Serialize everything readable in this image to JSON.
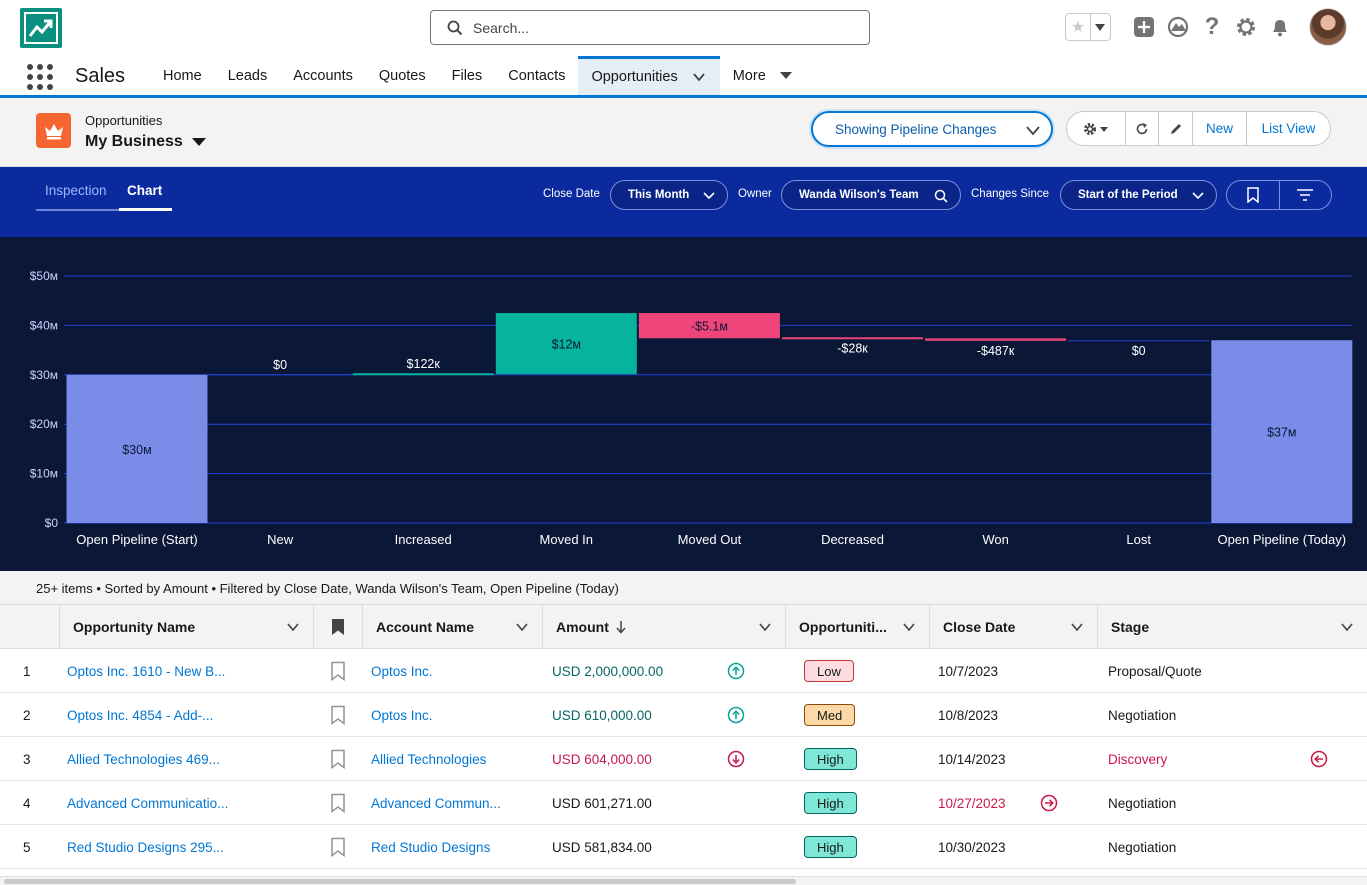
{
  "header": {
    "search_placeholder": "Search...",
    "icons": [
      "favorites-star-icon",
      "add-icon",
      "trailhead-icon",
      "help-icon",
      "setup-gear-icon",
      "notifications-bell-icon"
    ]
  },
  "app": {
    "name": "Sales",
    "tabs": [
      {
        "label": "Home"
      },
      {
        "label": "Leads"
      },
      {
        "label": "Accounts"
      },
      {
        "label": "Quotes"
      },
      {
        "label": "Files"
      },
      {
        "label": "Contacts"
      },
      {
        "label": "Opportunities",
        "active": true
      },
      {
        "label": "More"
      }
    ]
  },
  "page": {
    "object_type": "Opportunities",
    "title": "My Business",
    "pipeline_button": "Showing Pipeline Changes",
    "new_button": "New",
    "list_view_button": "List View"
  },
  "filters": {
    "tab_inspection": "Inspection",
    "tab_chart": "Chart",
    "close_date_label": "Close Date",
    "close_date_value": "This Month",
    "owner_label": "Owner",
    "owner_value": "Wanda Wilson's Team",
    "changes_since_label": "Changes Since",
    "changes_since_value": "Start of the Period"
  },
  "chart_data": {
    "type": "bar",
    "subtype": "waterfall",
    "y_ticks": [
      "$0",
      "$10м",
      "$20м",
      "$30м",
      "$40м",
      "$50м"
    ],
    "ylim": [
      0,
      50
    ],
    "categories": [
      "Open Pipeline (Start)",
      "New",
      "Increased",
      "Moved In",
      "Moved Out",
      "Decreased",
      "Won",
      "Lost",
      "Open Pipeline (Today)"
    ],
    "bars": [
      {
        "category": "Open Pipeline (Start)",
        "kind": "total",
        "start": 0,
        "end": 30,
        "label": "$30м"
      },
      {
        "category": "New",
        "kind": "increase",
        "start": 30,
        "end": 30,
        "label": "$0"
      },
      {
        "category": "Increased",
        "kind": "increase",
        "start": 30,
        "end": 30.122,
        "label": "$122к"
      },
      {
        "category": "Moved In",
        "kind": "increase",
        "start": 30.122,
        "end": 42.5,
        "label": "$12м"
      },
      {
        "category": "Moved Out",
        "kind": "decrease",
        "start": 42.5,
        "end": 37.4,
        "label": "-$5.1м"
      },
      {
        "category": "Decreased",
        "kind": "decrease",
        "start": 37.4,
        "end": 37.372,
        "label": "-$28к"
      },
      {
        "category": "Won",
        "kind": "decrease",
        "start": 37.372,
        "end": 36.885,
        "label": "-$487к"
      },
      {
        "category": "Lost",
        "kind": "decrease",
        "start": 36.885,
        "end": 36.885,
        "label": "$0"
      },
      {
        "category": "Open Pipeline (Today)",
        "kind": "total",
        "start": 0,
        "end": 37,
        "label": "$37м"
      }
    ],
    "colors": {
      "total": "#7b8be8",
      "increase": "#06b39d",
      "decrease": "#f0457a",
      "grid": "#1f43d8",
      "background": "#0b1737"
    },
    "grid": true
  },
  "list": {
    "summary": "25+ items • Sorted by Amount • Filtered by Close Date, Wanda Wilson's Team, Open Pipeline (Today)",
    "columns": [
      "Opportunity Name",
      "Account Name",
      "Amount",
      "Opportuniti...",
      "Close Date",
      "Stage"
    ],
    "rows": [
      {
        "num": "1",
        "name": "Optos Inc. 1610 - New B...",
        "account": "Optos Inc.",
        "amount": "USD 2,000,000.00",
        "amount_trend": "up",
        "probability": "Low",
        "close_date": "10/7/2023",
        "date_changed": false,
        "stage": "Proposal/Quote",
        "stage_changed": false
      },
      {
        "num": "2",
        "name": "Optos Inc. 4854 - Add-...",
        "account": "Optos Inc.",
        "amount": "USD 610,000.00",
        "amount_trend": "up",
        "probability": "Med",
        "close_date": "10/8/2023",
        "date_changed": false,
        "stage": "Negotiation",
        "stage_changed": false
      },
      {
        "num": "3",
        "name": "Allied Technologies 469...",
        "account": "Allied Technologies",
        "amount": "USD 604,000.00",
        "amount_trend": "down",
        "probability": "High",
        "close_date": "10/14/2023",
        "date_changed": false,
        "stage": "Discovery",
        "stage_changed": true
      },
      {
        "num": "4",
        "name": "Advanced Communicatio...",
        "account": "Advanced Commun...",
        "amount": "USD 601,271.00",
        "amount_trend": "none",
        "probability": "High",
        "close_date": "10/27/2023",
        "date_changed": true,
        "stage": "Negotiation",
        "stage_changed": false
      },
      {
        "num": "5",
        "name": "Red Studio Designs 295...",
        "account": "Red Studio Designs",
        "amount": "USD 581,834.00",
        "amount_trend": "none",
        "probability": "High",
        "close_date": "10/30/2023",
        "date_changed": false,
        "stage": "Negotiation",
        "stage_changed": false
      }
    ]
  }
}
